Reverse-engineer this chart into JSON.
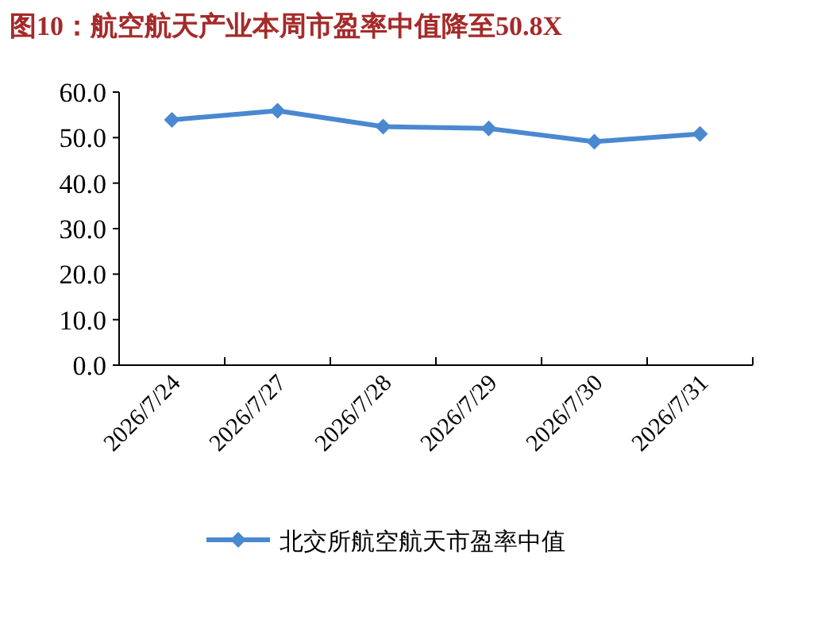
{
  "chart_data": {
    "type": "line",
    "title": "图10：航空航天产业本周市盈率中值降至50.8X",
    "categories": [
      "2026/7/24",
      "2026/7/27",
      "2026/7/28",
      "2026/7/29",
      "2026/7/30",
      "2026/7/31"
    ],
    "series": [
      {
        "name": "北交所航空航天市盈率中值",
        "color": "#4a88d0",
        "values": [
          53.9,
          55.9,
          52.4,
          52.0,
          49.1,
          50.8
        ]
      }
    ],
    "ylim": [
      0,
      60
    ],
    "yticks": [
      {
        "value": 0,
        "label": "0.0"
      },
      {
        "value": 10,
        "label": "10.0"
      },
      {
        "value": 20,
        "label": "20.0"
      },
      {
        "value": 30,
        "label": "30.0"
      },
      {
        "value": 40,
        "label": "40.0"
      },
      {
        "value": 50,
        "label": "50.0"
      },
      {
        "value": 60,
        "label": "60.0"
      }
    ],
    "marker": "diamond",
    "legend": "bottom",
    "grid": false
  }
}
